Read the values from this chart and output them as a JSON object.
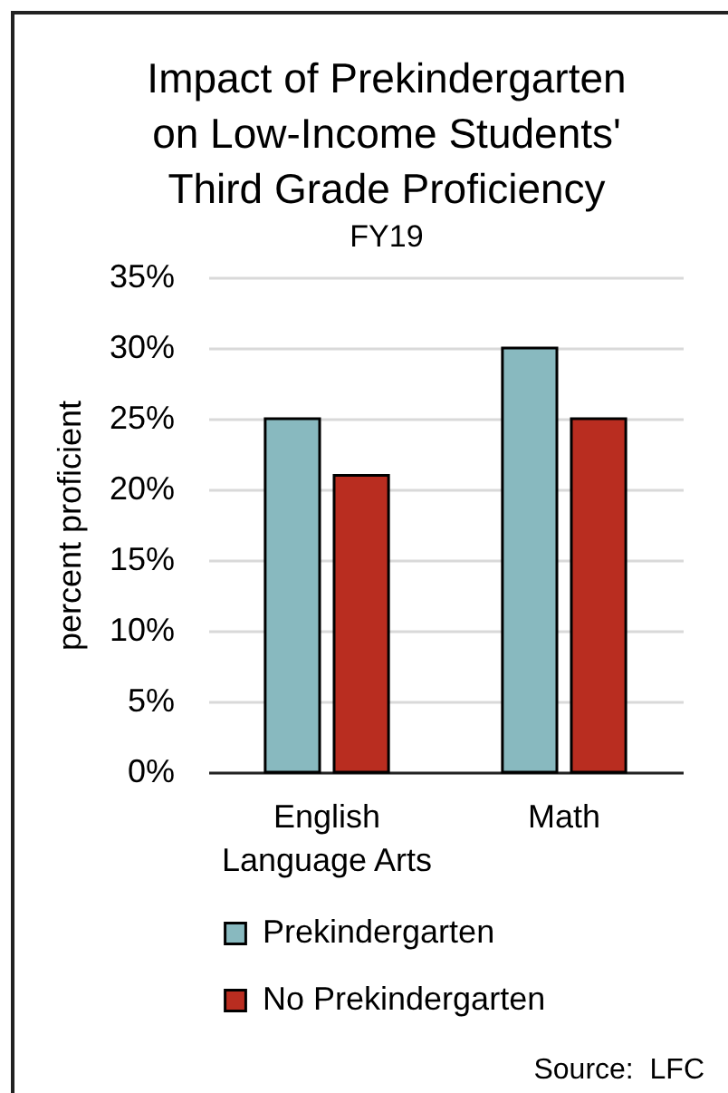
{
  "chart_data": {
    "type": "bar",
    "title": "Impact of Prekindergarten on Low-Income Students' Third Grade Proficiency",
    "subtitle": "FY19",
    "ylabel": "percent proficient",
    "categories": [
      "English Language Arts",
      "Math"
    ],
    "series": [
      {
        "name": "Prekindergarten",
        "color": "#88b9bf",
        "values": [
          25,
          30
        ]
      },
      {
        "name": "No Prekindergarten",
        "color": "#b92d20",
        "values": [
          21,
          25
        ]
      }
    ],
    "ylim": [
      0,
      35
    ],
    "yticks": [
      {
        "value": 0,
        "label": "0%"
      },
      {
        "value": 5,
        "label": "5%"
      },
      {
        "value": 10,
        "label": "10%"
      },
      {
        "value": 15,
        "label": "15%"
      },
      {
        "value": 20,
        "label": "20%"
      },
      {
        "value": 25,
        "label": "25%"
      },
      {
        "value": 30,
        "label": "30%"
      },
      {
        "value": 35,
        "label": "35%"
      }
    ],
    "grid": "y",
    "legend": "bottom",
    "annotations": [
      "Source:  LFC"
    ]
  }
}
